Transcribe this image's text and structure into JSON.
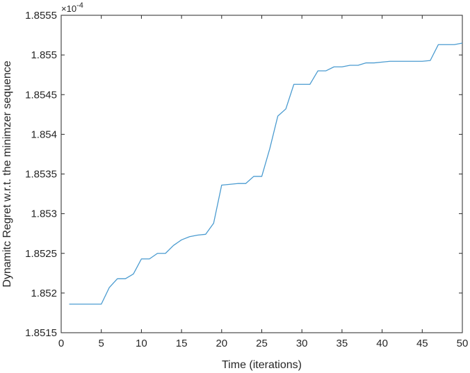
{
  "chart_data": {
    "type": "line",
    "title": "",
    "xlabel": "Time (iterations)",
    "ylabel": "Dynamitc Regret w.r.t. the minimzer sequence",
    "y_exponent_label": "×10",
    "y_exponent_power": "-4",
    "xlim": [
      0,
      50
    ],
    "ylim": [
      1.8515,
      1.8555
    ],
    "x_ticks": [
      0,
      5,
      10,
      15,
      20,
      25,
      30,
      35,
      40,
      45,
      50
    ],
    "x_tick_labels": [
      "0",
      "5",
      "10",
      "15",
      "20",
      "25",
      "30",
      "35",
      "40",
      "45",
      "50"
    ],
    "y_ticks": [
      1.8515,
      1.852,
      1.8525,
      1.853,
      1.8535,
      1.854,
      1.8545,
      1.855,
      1.8555
    ],
    "y_tick_labels": [
      "1.8515",
      "1.852",
      "1.8525",
      "1.853",
      "1.8535",
      "1.854",
      "1.8545",
      "1.855",
      "1.8555"
    ],
    "grid": false,
    "line_color": "#4A9BD0",
    "series": [
      {
        "x": [
          1,
          2,
          3,
          4,
          5,
          6,
          7,
          8,
          9,
          10,
          11,
          12,
          13,
          14,
          15,
          16,
          17,
          18,
          19,
          20,
          21,
          22,
          23,
          24,
          25,
          26,
          27,
          28,
          29,
          30,
          31,
          32,
          33,
          34,
          35,
          36,
          37,
          38,
          39,
          40,
          41,
          42,
          43,
          44,
          45,
          46,
          47,
          48,
          49,
          50
        ],
        "values": [
          1.85186,
          1.85186,
          1.85186,
          1.85186,
          1.85186,
          1.85207,
          1.85218,
          1.85218,
          1.85224,
          1.85243,
          1.85243,
          1.8525,
          1.8525,
          1.8526,
          1.85267,
          1.85271,
          1.85273,
          1.85274,
          1.85288,
          1.85336,
          1.85337,
          1.85338,
          1.85338,
          1.85347,
          1.85347,
          1.85382,
          1.85423,
          1.85432,
          1.85463,
          1.85463,
          1.85463,
          1.8548,
          1.8548,
          1.85485,
          1.85485,
          1.85487,
          1.85487,
          1.8549,
          1.8549,
          1.85491,
          1.85492,
          1.85492,
          1.85492,
          1.85492,
          1.85492,
          1.85493,
          1.85513,
          1.85513,
          1.85513,
          1.85515
        ]
      }
    ]
  }
}
